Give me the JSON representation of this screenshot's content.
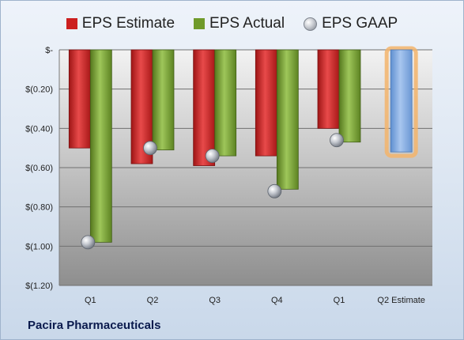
{
  "legend": [
    {
      "label": "EPS Estimate",
      "swatch": "rect",
      "color": "#cc1f1f"
    },
    {
      "label": "EPS Actual",
      "swatch": "rect",
      "color": "#6f9a2a"
    },
    {
      "label": "EPS GAAP",
      "swatch": "ball",
      "color": "#b8bcc4"
    }
  ],
  "company": "Pacira Pharmaceuticals",
  "chart_data": {
    "type": "bar",
    "categories": [
      "Q1",
      "Q2",
      "Q3",
      "Q4",
      "Q1",
      "Q2 Estimate"
    ],
    "series": [
      {
        "name": "EPS Estimate",
        "color": "#cc1f1f",
        "values": [
          -0.5,
          -0.58,
          -0.59,
          -0.54,
          -0.4,
          null
        ]
      },
      {
        "name": "EPS Actual",
        "color": "#6f9a2a",
        "values": [
          -0.98,
          -0.51,
          -0.54,
          -0.71,
          -0.47,
          null
        ]
      },
      {
        "name": "EPS GAAP",
        "marker": "ball",
        "values": [
          -0.98,
          -0.5,
          -0.54,
          -0.72,
          -0.46,
          null
        ]
      },
      {
        "name": "Q2 Estimate",
        "color": "#7fa8de",
        "highlight": "#f3b46b",
        "values": [
          null,
          null,
          null,
          null,
          null,
          -0.52
        ]
      }
    ],
    "yticks": [
      0,
      -0.2,
      -0.4,
      -0.6,
      -0.8,
      -1.0,
      -1.2
    ],
    "ytick_labels": [
      "$-",
      "$(0.20)",
      "$(0.40)",
      "$(0.60)",
      "$(0.80)",
      "$(1.00)",
      "$(1.20)"
    ],
    "ylim": [
      -1.2,
      0
    ],
    "grid": true,
    "legend_position": "top"
  }
}
